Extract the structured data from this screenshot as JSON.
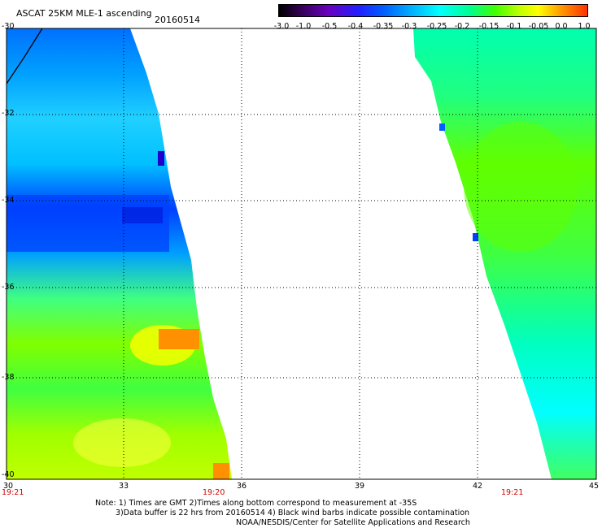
{
  "header": {
    "title": "ASCAT 25KM MLE-1 ascending",
    "date": "20160514"
  },
  "colorbar": {
    "ticks": [
      "-3.0",
      "-1.0",
      "-0.5",
      "-0.4",
      "-0.35",
      "-0.3",
      "-0.25",
      "-0.2",
      "-0.15",
      "-0.1",
      "-0.05",
      "0.0",
      "1.0"
    ]
  },
  "axes": {
    "y_labels": [
      "-30",
      "-32",
      "-34",
      "-36",
      "-38",
      "-40"
    ],
    "x_labels": [
      "30",
      "33",
      "36",
      "39",
      "42",
      "45"
    ],
    "time_labels": [
      "19:21",
      "19:20",
      "19:21"
    ]
  },
  "notes": {
    "line1": "Note: 1) Times are GMT 2)Times along bottom correspond to measurement at -35S",
    "line2": "3)Data buffer is 22 hrs from 20160514 4) Black wind barbs indicate possible contamination",
    "line3": "NOAA/NESDIS/Center for Satellite Applications and Research"
  },
  "colors": {
    "deep_blue": "#0020ff",
    "blue": "#0070ff",
    "cyan": "#00ffff",
    "green": "#40ff00",
    "yellow": "#ffff00",
    "orange": "#ff9000"
  }
}
